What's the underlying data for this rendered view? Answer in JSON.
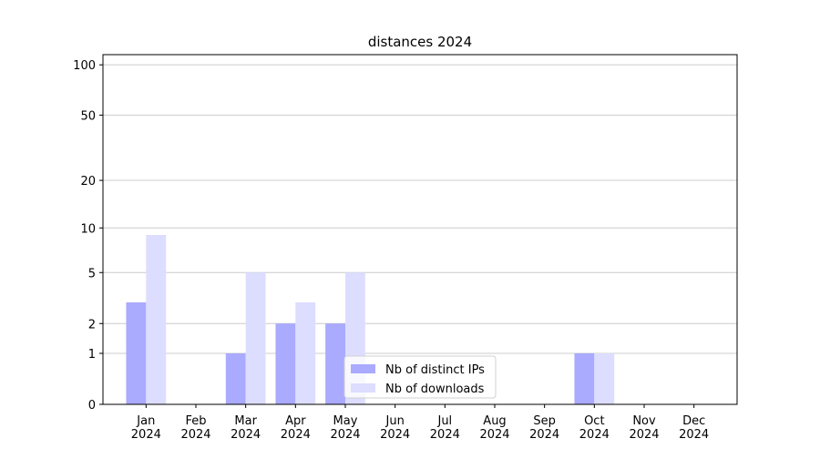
{
  "chart_data": {
    "type": "bar",
    "title": "distances 2024",
    "categories": [
      "Jan\n2024",
      "Feb\n2024",
      "Mar\n2024",
      "Apr\n2024",
      "May\n2024",
      "Jun\n2024",
      "Jul\n2024",
      "Aug\n2024",
      "Sep\n2024",
      "Oct\n2024",
      "Nov\n2024",
      "Dec\n2024"
    ],
    "series": [
      {
        "name": "Nb of distinct IPs",
        "color": "#aaaaff",
        "values": [
          3,
          0,
          1,
          2,
          2,
          0,
          0,
          0,
          0,
          1,
          0,
          0
        ]
      },
      {
        "name": "Nb of downloads",
        "color": "#ddddff",
        "values": [
          9,
          0,
          5,
          3,
          5,
          0,
          0,
          0,
          0,
          1,
          0,
          0
        ]
      }
    ],
    "yscale": "log1p",
    "ylim": [
      0,
      115
    ],
    "yticks": [
      0,
      1,
      2,
      5,
      10,
      20,
      50,
      100
    ],
    "grid": true,
    "legend": "lower center"
  }
}
